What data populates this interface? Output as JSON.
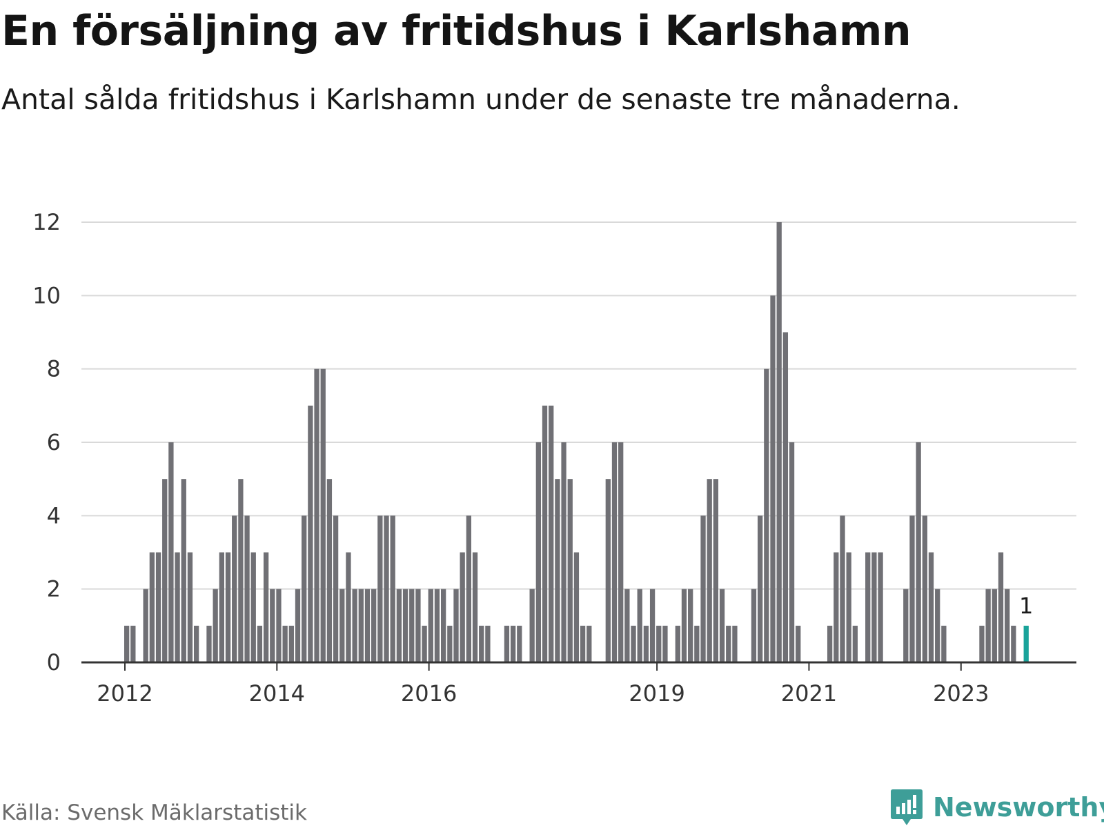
{
  "header": {
    "title": "En försäljning av fritidshus i Karlshamn",
    "subtitle": "Antal sålda fritidshus i Karlshamn under de senaste tre månaderna."
  },
  "footer": {
    "source": "Källa: Svensk Mäklarstatistik",
    "brand": "Newsworthy"
  },
  "colors": {
    "bar": "#707075",
    "highlight": "#19a39a",
    "grid": "#d9d9d9",
    "axis": "#333333",
    "brand": "#3e9e98"
  },
  "icons": {
    "brand_logo": "bar-chart-speech-bubble-icon"
  },
  "chart_data": {
    "type": "bar",
    "title": "En försäljning av fritidshus i Karlshamn",
    "subtitle": "Antal sålda fritidshus i Karlshamn under de senaste tre månaderna.",
    "xlabel": "",
    "ylabel": "",
    "ylim": [
      0,
      12
    ],
    "yticks": [
      0,
      2,
      4,
      6,
      8,
      10,
      12
    ],
    "xticks": [
      {
        "label": "2012",
        "date": "2012-01"
      },
      {
        "label": "2014",
        "date": "2014-01"
      },
      {
        "label": "2016",
        "date": "2016-01"
      },
      {
        "label": "2019",
        "date": "2019-01"
      },
      {
        "label": "2021",
        "date": "2021-01"
      },
      {
        "label": "2023",
        "date": "2023-01"
      }
    ],
    "grid": true,
    "highlight": {
      "date": "2023-11",
      "value": 1,
      "label": "1"
    },
    "dates": [
      "2012-01",
      "2012-02",
      "2012-03",
      "2012-04",
      "2012-05",
      "2012-06",
      "2012-07",
      "2012-08",
      "2012-09",
      "2012-10",
      "2012-11",
      "2012-12",
      "2013-01",
      "2013-02",
      "2013-03",
      "2013-04",
      "2013-05",
      "2013-06",
      "2013-07",
      "2013-08",
      "2013-09",
      "2013-10",
      "2013-11",
      "2013-12",
      "2014-01",
      "2014-02",
      "2014-03",
      "2014-04",
      "2014-05",
      "2014-06",
      "2014-07",
      "2014-08",
      "2014-09",
      "2014-10",
      "2014-11",
      "2014-12",
      "2015-01",
      "2015-02",
      "2015-03",
      "2015-04",
      "2015-05",
      "2015-06",
      "2015-07",
      "2015-08",
      "2015-09",
      "2015-10",
      "2015-11",
      "2015-12",
      "2016-01",
      "2016-02",
      "2016-03",
      "2016-04",
      "2016-05",
      "2016-06",
      "2016-07",
      "2016-08",
      "2016-09",
      "2016-10",
      "2016-11",
      "2016-12",
      "2017-01",
      "2017-02",
      "2017-03",
      "2017-04",
      "2017-05",
      "2017-06",
      "2017-07",
      "2017-08",
      "2017-09",
      "2017-10",
      "2017-11",
      "2017-12",
      "2018-01",
      "2018-02",
      "2018-03",
      "2018-04",
      "2018-05",
      "2018-06",
      "2018-07",
      "2018-08",
      "2018-09",
      "2018-10",
      "2018-11",
      "2018-12",
      "2019-01",
      "2019-02",
      "2019-03",
      "2019-04",
      "2019-05",
      "2019-06",
      "2019-07",
      "2019-08",
      "2019-09",
      "2019-10",
      "2019-11",
      "2019-12",
      "2020-01",
      "2020-02",
      "2020-03",
      "2020-04",
      "2020-05",
      "2020-06",
      "2020-07",
      "2020-08",
      "2020-09",
      "2020-10",
      "2020-11",
      "2020-12",
      "2021-01",
      "2021-02",
      "2021-03",
      "2021-04",
      "2021-05",
      "2021-06",
      "2021-07",
      "2021-08",
      "2021-09",
      "2021-10",
      "2021-11",
      "2021-12",
      "2022-01",
      "2022-02",
      "2022-03",
      "2022-04",
      "2022-05",
      "2022-06",
      "2022-07",
      "2022-08",
      "2022-09",
      "2022-10",
      "2022-11",
      "2022-12",
      "2023-01",
      "2023-02",
      "2023-03",
      "2023-04",
      "2023-05",
      "2023-06",
      "2023-07",
      "2023-08",
      "2023-09",
      "2023-10",
      "2023-11"
    ],
    "values": [
      1,
      1,
      0,
      2,
      3,
      3,
      5,
      6,
      3,
      5,
      3,
      1,
      0,
      1,
      2,
      3,
      3,
      4,
      5,
      4,
      3,
      1,
      3,
      2,
      2,
      1,
      1,
      2,
      4,
      7,
      8,
      8,
      5,
      4,
      2,
      3,
      2,
      2,
      2,
      2,
      4,
      4,
      4,
      2,
      2,
      2,
      2,
      1,
      2,
      2,
      2,
      1,
      2,
      3,
      4,
      3,
      1,
      1,
      0,
      0,
      1,
      1,
      1,
      0,
      2,
      6,
      7,
      7,
      5,
      6,
      5,
      3,
      1,
      1,
      0,
      0,
      5,
      6,
      6,
      2,
      1,
      2,
      1,
      2,
      1,
      1,
      0,
      1,
      2,
      2,
      1,
      4,
      5,
      5,
      2,
      1,
      1,
      0,
      0,
      2,
      4,
      8,
      10,
      12,
      9,
      6,
      1,
      0,
      0,
      0,
      0,
      1,
      3,
      4,
      3,
      1,
      0,
      3,
      3,
      3,
      0,
      0,
      0,
      2,
      4,
      6,
      4,
      3,
      2,
      1,
      0,
      0,
      0,
      0,
      0,
      1,
      2,
      2,
      3,
      2,
      1,
      0,
      1
    ]
  }
}
